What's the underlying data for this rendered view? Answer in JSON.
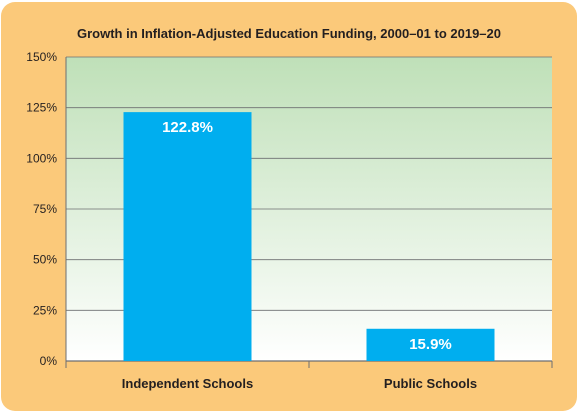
{
  "chart_data": {
    "type": "bar",
    "title": "Growth in Inflation-Adjusted Education Funding, 2000–01 to 2019–20",
    "categories": [
      "Independent Schools",
      "Public Schools"
    ],
    "values": [
      122.8,
      15.9
    ],
    "value_labels": [
      "122.8%",
      "15.9%"
    ],
    "ylim": [
      0,
      150
    ],
    "yticks": [
      "0%",
      "25%",
      "50%",
      "75%",
      "100%",
      "125%",
      "150%"
    ],
    "ytick_values": [
      0,
      25,
      50,
      75,
      100,
      125,
      150
    ],
    "xlabel": "",
    "ylabel": "",
    "grid": true,
    "legend": "none"
  },
  "colors": {
    "frame": "#fbc97a",
    "bar": "#00aeef",
    "plot_top": "#bfe0b8",
    "plot_bottom": "#ffffff",
    "grid": "#6d6e71",
    "text": "#231f20"
  }
}
